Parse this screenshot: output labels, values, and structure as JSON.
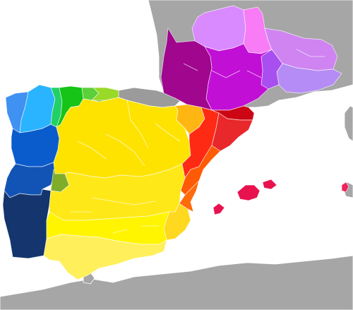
{
  "map": {
    "sea_color": "#ffffff",
    "outside_land_color": "#a6a6a6",
    "regions": [
      {
        "id": "galician",
        "color": "#2ab4ff"
      },
      {
        "id": "galician-west",
        "color": "#3f91f2"
      },
      {
        "id": "eonavian",
        "color": "#21d066"
      },
      {
        "id": "asturleonese",
        "color": "#16c317"
      },
      {
        "id": "asturleonese-east",
        "color": "#5bd03a"
      },
      {
        "id": "cantabrian",
        "color": "#99d928"
      },
      {
        "id": "extremaduran-north",
        "color": "#6eaa2d"
      },
      {
        "id": "barranquenho",
        "color": "#7fad2a"
      },
      {
        "id": "portuguese-north",
        "color": "#0a5ccd"
      },
      {
        "id": "portuguese-center",
        "color": "#1254b5"
      },
      {
        "id": "portuguese-south",
        "color": "#14356d"
      },
      {
        "id": "castilian-north",
        "color": "#ffe300"
      },
      {
        "id": "castilian-center",
        "color": "#ffe818"
      },
      {
        "id": "castilian-south",
        "color": "#fff500"
      },
      {
        "id": "andalusian",
        "color": "#ffef5a"
      },
      {
        "id": "murcian",
        "color": "#ffd820"
      },
      {
        "id": "aragonese",
        "color": "#ffb612"
      },
      {
        "id": "valencian-north",
        "color": "#ff5a05"
      },
      {
        "id": "valencian-south",
        "color": "#ff6a0a"
      },
      {
        "id": "northwestern-catalan",
        "color": "#ff2a14"
      },
      {
        "id": "central-catalan",
        "color": "#e8282b"
      },
      {
        "id": "catalan-coast",
        "color": "#cc0614"
      },
      {
        "id": "balearic",
        "color": "#e80a52"
      },
      {
        "id": "alguerese",
        "color": "#f0245c"
      },
      {
        "id": "basque",
        "color": "#9b9b9b"
      },
      {
        "id": "gascon",
        "color": "#a0068e"
      },
      {
        "id": "languedocien",
        "color": "#c10fd6"
      },
      {
        "id": "provencal",
        "color": "#a94ff0"
      },
      {
        "id": "auvergnat",
        "color": "#d98aff"
      },
      {
        "id": "limousin",
        "color": "#f77cf5"
      },
      {
        "id": "vivaro-alpine",
        "color": "#cf84f2"
      },
      {
        "id": "occitan-east",
        "color": "#b58cf5"
      },
      {
        "id": "mallorca",
        "color": "#e8124e"
      },
      {
        "id": "ibiza",
        "color": "#e8124e"
      }
    ]
  }
}
